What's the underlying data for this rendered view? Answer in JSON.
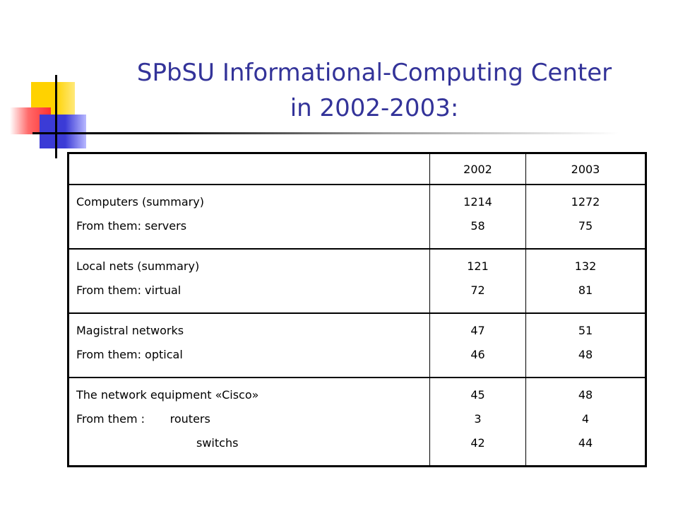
{
  "title": {
    "line1": "SPbSU Informational-Computing Center",
    "line2": "in 2002-2003:"
  },
  "table": {
    "headers": [
      "",
      "2002",
      "2003"
    ],
    "rows": [
      {
        "labels": [
          "Computers (summary)",
          "From them: servers"
        ],
        "y2002": [
          "1214",
          "58"
        ],
        "y2003": [
          "1272",
          "75"
        ]
      },
      {
        "labels": [
          "Local nets (summary)",
          "From them: virtual"
        ],
        "y2002": [
          "121",
          "72"
        ],
        "y2003": [
          "132",
          "81"
        ]
      },
      {
        "labels": [
          "Magistral networks",
          "From them: optical"
        ],
        "y2002": [
          "47",
          "46"
        ],
        "y2003": [
          "51",
          "48"
        ]
      },
      {
        "labels": [
          "The network equipment «Cisco»",
          "From them :       routers",
          "switchs"
        ],
        "y2002": [
          "45",
          "3",
          "42"
        ],
        "y2003": [
          "48",
          "4",
          "44"
        ]
      }
    ]
  },
  "colors": {
    "title": "#333399",
    "accent_yellow": "#ffd200",
    "accent_red": "#ff3030",
    "accent_blue": "#3b3bd6"
  }
}
